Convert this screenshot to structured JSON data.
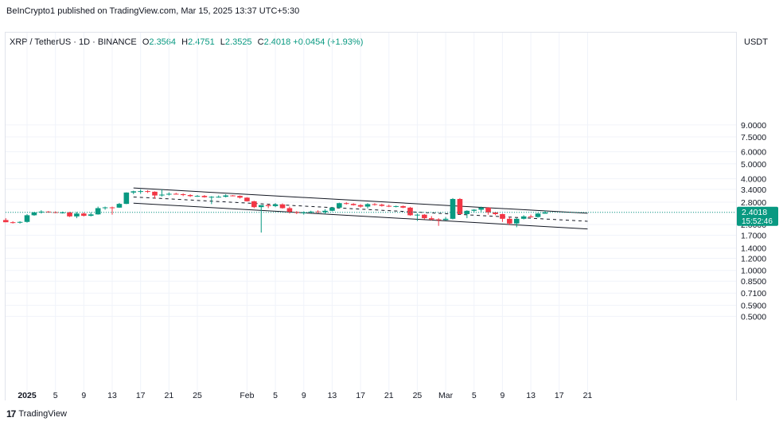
{
  "header": {
    "published": "BeInCrypto1 published on TradingView.com, Mar 15, 2025 13:37 UTC+5:30"
  },
  "legend": {
    "symbol": "XRP / TetherUS · 1D · BINANCE",
    "open_label": "O",
    "open": "2.3564",
    "high_label": "H",
    "high": "2.4751",
    "low_label": "L",
    "low": "2.3525",
    "close_label": "C",
    "close": "2.4018",
    "change": "+0.0454 (+1.93%)"
  },
  "axis": {
    "currency": "USDT"
  },
  "price_tag": {
    "price": "2.4018",
    "countdown": "15:52:46"
  },
  "footer": {
    "logo": "17",
    "brand": "TradingView"
  },
  "colors": {
    "up": "#089981",
    "down": "#f23645",
    "grid": "#f0f3fa",
    "text": "#131722"
  },
  "chart_data": {
    "type": "candlestick",
    "scale": "log",
    "y_ticks": [
      "9.0000",
      "7.5000",
      "6.0000",
      "5.0000",
      "4.0000",
      "3.4000",
      "2.8000",
      "2.4000",
      "2.0000",
      "1.7000",
      "1.4000",
      "1.2000",
      "1.0000",
      "0.8500",
      "0.7100",
      "0.5900",
      "0.5000"
    ],
    "x_ticks": [
      {
        "date": "2025-01-01",
        "label": "2025",
        "bold": true
      },
      {
        "date": "2025-01-05",
        "label": "5"
      },
      {
        "date": "2025-01-09",
        "label": "9"
      },
      {
        "date": "2025-01-13",
        "label": "13"
      },
      {
        "date": "2025-01-17",
        "label": "17"
      },
      {
        "date": "2025-01-21",
        "label": "21"
      },
      {
        "date": "2025-01-25",
        "label": "25"
      },
      {
        "date": "2025-02-01",
        "label": "Feb"
      },
      {
        "date": "2025-02-05",
        "label": "5"
      },
      {
        "date": "2025-02-09",
        "label": "9"
      },
      {
        "date": "2025-02-13",
        "label": "13"
      },
      {
        "date": "2025-02-17",
        "label": "17"
      },
      {
        "date": "2025-02-21",
        "label": "21"
      },
      {
        "date": "2025-02-25",
        "label": "25"
      },
      {
        "date": "2025-03-01",
        "label": "Mar"
      },
      {
        "date": "2025-03-05",
        "label": "5"
      },
      {
        "date": "2025-03-09",
        "label": "9"
      },
      {
        "date": "2025-03-13",
        "label": "13"
      },
      {
        "date": "2025-03-17",
        "label": "17"
      },
      {
        "date": "2025-03-21",
        "label": "21"
      }
    ],
    "candles": [
      {
        "date": "2024-12-29",
        "o": 2.14,
        "h": 2.2,
        "l": 2.07,
        "c": 2.07
      },
      {
        "date": "2024-12-30",
        "o": 2.07,
        "h": 2.1,
        "l": 2.03,
        "c": 2.06
      },
      {
        "date": "2024-12-31",
        "o": 2.06,
        "h": 2.1,
        "l": 2.03,
        "c": 2.08
      },
      {
        "date": "2025-01-01",
        "o": 2.08,
        "h": 2.34,
        "l": 2.06,
        "c": 2.3
      },
      {
        "date": "2025-01-02",
        "o": 2.3,
        "h": 2.42,
        "l": 2.28,
        "c": 2.4
      },
      {
        "date": "2025-01-03",
        "o": 2.4,
        "h": 2.48,
        "l": 2.36,
        "c": 2.43
      },
      {
        "date": "2025-01-04",
        "o": 2.43,
        "h": 2.45,
        "l": 2.39,
        "c": 2.41
      },
      {
        "date": "2025-01-05",
        "o": 2.41,
        "h": 2.44,
        "l": 2.37,
        "c": 2.39
      },
      {
        "date": "2025-01-06",
        "o": 2.39,
        "h": 2.43,
        "l": 2.36,
        "c": 2.4
      },
      {
        "date": "2025-01-07",
        "o": 2.4,
        "h": 2.42,
        "l": 2.24,
        "c": 2.26
      },
      {
        "date": "2025-01-08",
        "o": 2.26,
        "h": 2.42,
        "l": 2.2,
        "c": 2.36
      },
      {
        "date": "2025-01-09",
        "o": 2.36,
        "h": 2.4,
        "l": 2.26,
        "c": 2.28
      },
      {
        "date": "2025-01-10",
        "o": 2.28,
        "h": 2.4,
        "l": 2.26,
        "c": 2.33
      },
      {
        "date": "2025-01-11",
        "o": 2.33,
        "h": 2.62,
        "l": 2.32,
        "c": 2.56
      },
      {
        "date": "2025-01-12",
        "o": 2.56,
        "h": 2.62,
        "l": 2.5,
        "c": 2.59
      },
      {
        "date": "2025-01-13",
        "o": 2.59,
        "h": 2.62,
        "l": 2.32,
        "c": 2.58
      },
      {
        "date": "2025-01-14",
        "o": 2.58,
        "h": 2.77,
        "l": 2.57,
        "c": 2.73
      },
      {
        "date": "2025-01-15",
        "o": 2.73,
        "h": 3.25,
        "l": 2.72,
        "c": 3.24
      },
      {
        "date": "2025-01-16",
        "o": 3.24,
        "h": 3.33,
        "l": 3.16,
        "c": 3.3
      },
      {
        "date": "2025-01-17",
        "o": 3.3,
        "h": 3.4,
        "l": 3.18,
        "c": 3.31
      },
      {
        "date": "2025-01-18",
        "o": 3.31,
        "h": 3.36,
        "l": 3.22,
        "c": 3.28
      },
      {
        "date": "2025-01-19",
        "o": 3.28,
        "h": 3.3,
        "l": 2.95,
        "c": 3.1
      },
      {
        "date": "2025-01-20",
        "o": 3.1,
        "h": 3.4,
        "l": 3.05,
        "c": 3.14
      },
      {
        "date": "2025-01-21",
        "o": 3.14,
        "h": 3.25,
        "l": 3.1,
        "c": 3.18
      },
      {
        "date": "2025-01-22",
        "o": 3.18,
        "h": 3.23,
        "l": 3.14,
        "c": 3.16
      },
      {
        "date": "2025-01-23",
        "o": 3.16,
        "h": 3.2,
        "l": 3.07,
        "c": 3.12
      },
      {
        "date": "2025-01-24",
        "o": 3.12,
        "h": 3.16,
        "l": 3.03,
        "c": 3.07
      },
      {
        "date": "2025-01-25",
        "o": 3.07,
        "h": 3.12,
        "l": 3.04,
        "c": 3.08
      },
      {
        "date": "2025-01-26",
        "o": 3.08,
        "h": 3.12,
        "l": 3.0,
        "c": 3.02
      },
      {
        "date": "2025-01-27",
        "o": 3.02,
        "h": 3.07,
        "l": 2.72,
        "c": 3.04
      },
      {
        "date": "2025-01-28",
        "o": 3.04,
        "h": 3.1,
        "l": 3.0,
        "c": 3.04
      },
      {
        "date": "2025-01-29",
        "o": 3.04,
        "h": 3.16,
        "l": 3.01,
        "c": 3.1
      },
      {
        "date": "2025-01-30",
        "o": 3.1,
        "h": 3.12,
        "l": 3.06,
        "c": 3.08
      },
      {
        "date": "2025-01-31",
        "o": 3.08,
        "h": 3.1,
        "l": 2.96,
        "c": 3.0
      },
      {
        "date": "2025-02-01",
        "o": 3.0,
        "h": 3.02,
        "l": 2.83,
        "c": 2.84
      },
      {
        "date": "2025-02-02",
        "o": 2.84,
        "h": 2.86,
        "l": 2.56,
        "c": 2.6
      },
      {
        "date": "2025-02-03",
        "o": 2.6,
        "h": 2.67,
        "l": 1.77,
        "c": 2.68
      },
      {
        "date": "2025-02-04",
        "o": 2.68,
        "h": 2.72,
        "l": 2.56,
        "c": 2.64
      },
      {
        "date": "2025-02-05",
        "o": 2.64,
        "h": 2.76,
        "l": 2.6,
        "c": 2.71
      },
      {
        "date": "2025-02-06",
        "o": 2.71,
        "h": 2.75,
        "l": 2.54,
        "c": 2.56
      },
      {
        "date": "2025-02-07",
        "o": 2.56,
        "h": 2.62,
        "l": 2.36,
        "c": 2.42
      },
      {
        "date": "2025-02-08",
        "o": 2.42,
        "h": 2.45,
        "l": 2.34,
        "c": 2.38
      },
      {
        "date": "2025-02-09",
        "o": 2.38,
        "h": 2.44,
        "l": 2.32,
        "c": 2.4
      },
      {
        "date": "2025-02-10",
        "o": 2.4,
        "h": 2.46,
        "l": 2.37,
        "c": 2.43
      },
      {
        "date": "2025-02-11",
        "o": 2.43,
        "h": 2.48,
        "l": 2.38,
        "c": 2.41
      },
      {
        "date": "2025-02-12",
        "o": 2.41,
        "h": 2.52,
        "l": 2.34,
        "c": 2.46
      },
      {
        "date": "2025-02-13",
        "o": 2.46,
        "h": 2.6,
        "l": 2.44,
        "c": 2.58
      },
      {
        "date": "2025-02-14",
        "o": 2.58,
        "h": 2.78,
        "l": 2.55,
        "c": 2.76
      },
      {
        "date": "2025-02-15",
        "o": 2.76,
        "h": 2.8,
        "l": 2.7,
        "c": 2.73
      },
      {
        "date": "2025-02-16",
        "o": 2.73,
        "h": 2.76,
        "l": 2.66,
        "c": 2.68
      },
      {
        "date": "2025-02-17",
        "o": 2.68,
        "h": 2.72,
        "l": 2.58,
        "c": 2.62
      },
      {
        "date": "2025-02-18",
        "o": 2.62,
        "h": 2.76,
        "l": 2.55,
        "c": 2.72
      },
      {
        "date": "2025-02-19",
        "o": 2.72,
        "h": 2.76,
        "l": 2.66,
        "c": 2.7
      },
      {
        "date": "2025-02-20",
        "o": 2.7,
        "h": 2.74,
        "l": 2.62,
        "c": 2.65
      },
      {
        "date": "2025-02-21",
        "o": 2.65,
        "h": 2.7,
        "l": 2.6,
        "c": 2.62
      },
      {
        "date": "2025-02-22",
        "o": 2.62,
        "h": 2.66,
        "l": 2.59,
        "c": 2.64
      },
      {
        "date": "2025-02-23",
        "o": 2.64,
        "h": 2.66,
        "l": 2.56,
        "c": 2.58
      },
      {
        "date": "2025-02-24",
        "o": 2.58,
        "h": 2.61,
        "l": 2.28,
        "c": 2.3
      },
      {
        "date": "2025-02-25",
        "o": 2.3,
        "h": 2.36,
        "l": 2.11,
        "c": 2.32
      },
      {
        "date": "2025-02-26",
        "o": 2.32,
        "h": 2.34,
        "l": 2.16,
        "c": 2.2
      },
      {
        "date": "2025-02-27",
        "o": 2.2,
        "h": 2.27,
        "l": 2.13,
        "c": 2.16
      },
      {
        "date": "2025-02-28",
        "o": 2.16,
        "h": 2.2,
        "l": 1.96,
        "c": 2.14
      },
      {
        "date": "2025-03-01",
        "o": 2.14,
        "h": 2.24,
        "l": 2.13,
        "c": 2.18
      },
      {
        "date": "2025-03-02",
        "o": 2.18,
        "h": 2.98,
        "l": 2.16,
        "c": 2.94
      },
      {
        "date": "2025-03-03",
        "o": 2.94,
        "h": 2.98,
        "l": 2.32,
        "c": 2.34
      },
      {
        "date": "2025-03-04",
        "o": 2.34,
        "h": 2.48,
        "l": 2.2,
        "c": 2.46
      },
      {
        "date": "2025-03-05",
        "o": 2.46,
        "h": 2.52,
        "l": 2.4,
        "c": 2.5
      },
      {
        "date": "2025-03-06",
        "o": 2.5,
        "h": 2.62,
        "l": 2.42,
        "c": 2.58
      },
      {
        "date": "2025-03-07",
        "o": 2.58,
        "h": 2.6,
        "l": 2.32,
        "c": 2.4
      },
      {
        "date": "2025-03-08",
        "o": 2.4,
        "h": 2.42,
        "l": 2.3,
        "c": 2.34
      },
      {
        "date": "2025-03-09",
        "o": 2.34,
        "h": 2.36,
        "l": 2.08,
        "c": 2.18
      },
      {
        "date": "2025-03-10",
        "o": 2.18,
        "h": 2.24,
        "l": 1.98,
        "c": 2.03
      },
      {
        "date": "2025-03-11",
        "o": 2.03,
        "h": 2.2,
        "l": 1.92,
        "c": 2.18
      },
      {
        "date": "2025-03-12",
        "o": 2.18,
        "h": 2.3,
        "l": 2.16,
        "c": 2.26
      },
      {
        "date": "2025-03-13",
        "o": 2.26,
        "h": 2.32,
        "l": 2.22,
        "c": 2.24
      },
      {
        "date": "2025-03-14",
        "o": 2.24,
        "h": 2.38,
        "l": 2.22,
        "c": 2.36
      },
      {
        "date": "2025-03-15",
        "o": 2.3564,
        "h": 2.4751,
        "l": 2.3525,
        "c": 2.4018
      }
    ],
    "channel": {
      "start_date": "2025-01-16",
      "end_date": "2025-03-21",
      "upper": [
        3.47,
        2.37
      ],
      "middle": [
        3.03,
        2.1
      ],
      "lower": [
        2.76,
        1.87
      ]
    },
    "last_price": 2.4018
  }
}
